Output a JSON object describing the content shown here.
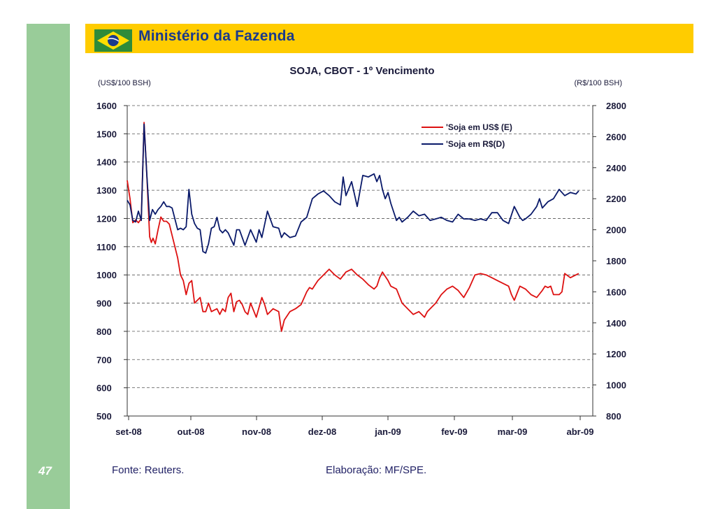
{
  "header": {
    "brand_title": "Ministério da Fazenda"
  },
  "slide": {
    "page_number": "47"
  },
  "footer": {
    "source": "Fonte: Reuters.",
    "credit": "Elaboração: MF/SPE."
  },
  "colors": {
    "header": "#ffcc00",
    "sidebar": "#99cc99",
    "usd_series": "#dd1111",
    "brl_series": "#0a1a6a"
  },
  "chart_data": {
    "type": "line",
    "title": "SOJA, CBOT - 1º Vencimento",
    "ylabel_left": "(US$/100 BSH)",
    "ylabel_right": "(R$/100 BSH)",
    "categories": [
      "set-08",
      "out-08",
      "nov-08",
      "dez-08",
      "jan-09",
      "fev-09",
      "mar-09",
      "abr-09"
    ],
    "y_left": {
      "ticks": [
        1600,
        1500,
        1400,
        1300,
        1200,
        1100,
        1000,
        900,
        800,
        700,
        600,
        500
      ],
      "range": [
        500,
        1600
      ]
    },
    "y_right": {
      "ticks": [
        2800,
        2600,
        2400,
        2200,
        2000,
        1800,
        1600,
        1400,
        1200,
        1000,
        800
      ],
      "range": [
        800,
        2800
      ]
    },
    "x_range": [
      0,
      8.3
    ],
    "grid": "dashed horizontal",
    "legend_position": "top-right",
    "series": [
      {
        "name": "'Soja em US$ (E)",
        "axis": "left",
        "x": [
          0,
          0.05,
          0.1,
          0.15,
          0.2,
          0.25,
          0.3,
          0.35,
          0.4,
          0.43,
          0.46,
          0.5,
          0.55,
          0.6,
          0.65,
          0.7,
          0.75,
          0.8,
          0.9,
          0.95,
          1.0,
          1.05,
          1.1,
          1.15,
          1.2,
          1.3,
          1.35,
          1.4,
          1.45,
          1.5,
          1.6,
          1.65,
          1.7,
          1.75,
          1.8,
          1.85,
          1.9,
          1.95,
          2.0,
          2.05,
          2.1,
          2.15,
          2.2,
          2.3,
          2.4,
          2.45,
          2.5,
          2.6,
          2.7,
          2.75,
          2.8,
          2.9,
          3.0,
          3.1,
          3.2,
          3.25,
          3.3,
          3.35,
          3.4,
          3.5,
          3.6,
          3.7,
          3.8,
          3.9,
          4.0,
          4.1,
          4.2,
          4.3,
          4.4,
          4.45,
          4.5,
          4.55,
          4.6,
          4.65,
          4.7,
          4.8,
          4.9,
          5.0,
          5.1,
          5.2,
          5.3,
          5.35,
          5.4,
          5.5,
          5.6,
          5.7,
          5.8,
          5.9,
          6.0,
          6.1,
          6.2,
          6.3,
          6.4,
          6.5,
          6.6,
          6.7,
          6.8,
          6.85,
          6.9,
          7.0,
          7.1,
          7.2,
          7.3,
          7.4,
          7.45,
          7.5,
          7.55,
          7.6,
          7.7,
          7.75,
          7.8,
          7.9,
          8.0,
          8.05
        ],
        "values": [
          1335,
          1270,
          1185,
          1195,
          1185,
          1200,
          1540,
          1350,
          1135,
          1115,
          1130,
          1110,
          1160,
          1205,
          1190,
          1190,
          1180,
          1140,
          1060,
          1000,
          980,
          930,
          970,
          980,
          900,
          920,
          870,
          870,
          900,
          870,
          880,
          860,
          880,
          870,
          920,
          935,
          870,
          905,
          910,
          895,
          870,
          860,
          900,
          850,
          920,
          895,
          860,
          880,
          870,
          800,
          840,
          870,
          880,
          895,
          940,
          955,
          950,
          965,
          980,
          1000,
          1020,
          1000,
          985,
          1010,
          1020,
          1000,
          985,
          965,
          950,
          960,
          990,
          1010,
          995,
          980,
          960,
          950,
          900,
          880,
          860,
          870,
          850,
          870,
          880,
          900,
          930,
          950,
          960,
          945,
          920,
          955,
          1000,
          1005,
          1000,
          990,
          980,
          970,
          960,
          930,
          910,
          960,
          950,
          930,
          920,
          945,
          960,
          955,
          960,
          930,
          930,
          940,
          1005,
          990,
          1000,
          1005
        ]
      },
      {
        "name": "'Soja em R$(D)",
        "axis": "right",
        "x": [
          0,
          0.05,
          0.1,
          0.15,
          0.2,
          0.25,
          0.3,
          0.35,
          0.4,
          0.45,
          0.5,
          0.55,
          0.6,
          0.65,
          0.7,
          0.75,
          0.8,
          0.9,
          0.95,
          1.0,
          1.05,
          1.1,
          1.15,
          1.2,
          1.25,
          1.3,
          1.35,
          1.4,
          1.45,
          1.5,
          1.55,
          1.6,
          1.65,
          1.7,
          1.75,
          1.8,
          1.9,
          1.95,
          2.0,
          2.1,
          2.2,
          2.3,
          2.35,
          2.4,
          2.5,
          2.6,
          2.7,
          2.75,
          2.8,
          2.9,
          3.0,
          3.1,
          3.2,
          3.3,
          3.4,
          3.5,
          3.6,
          3.7,
          3.8,
          3.85,
          3.9,
          4.0,
          4.1,
          4.2,
          4.3,
          4.4,
          4.45,
          4.5,
          4.55,
          4.6,
          4.65,
          4.7,
          4.8,
          4.85,
          4.9,
          5.0,
          5.1,
          5.2,
          5.3,
          5.4,
          5.5,
          5.6,
          5.7,
          5.8,
          5.9,
          6.0,
          6.1,
          6.2,
          6.3,
          6.4,
          6.5,
          6.6,
          6.7,
          6.8,
          6.9,
          7.0,
          7.05,
          7.1,
          7.2,
          7.3,
          7.35,
          7.4,
          7.5,
          7.6,
          7.7,
          7.8,
          7.9,
          8.0,
          8.05
        ],
        "values": [
          2190,
          2160,
          2060,
          2050,
          2120,
          2060,
          2680,
          2350,
          2060,
          2130,
          2100,
          2130,
          2150,
          2180,
          2150,
          2150,
          2140,
          2000,
          2010,
          2000,
          2020,
          2260,
          2100,
          2040,
          2010,
          2000,
          1860,
          1850,
          1910,
          2010,
          2020,
          2080,
          2000,
          1980,
          2000,
          1980,
          1900,
          2000,
          2000,
          1900,
          2000,
          1920,
          2000,
          1950,
          2120,
          2020,
          2010,
          1950,
          1980,
          1950,
          1960,
          2050,
          2080,
          2200,
          2230,
          2250,
          2220,
          2180,
          2160,
          2340,
          2220,
          2310,
          2150,
          2350,
          2340,
          2360,
          2310,
          2350,
          2260,
          2200,
          2240,
          2170,
          2060,
          2080,
          2050,
          2080,
          2120,
          2090,
          2100,
          2060,
          2070,
          2080,
          2060,
          2050,
          2100,
          2070,
          2070,
          2060,
          2070,
          2060,
          2110,
          2110,
          2060,
          2040,
          2150,
          2080,
          2060,
          2070,
          2100,
          2150,
          2200,
          2140,
          2180,
          2200,
          2260,
          2220,
          2240,
          2230,
          2250
        ]
      }
    ]
  }
}
